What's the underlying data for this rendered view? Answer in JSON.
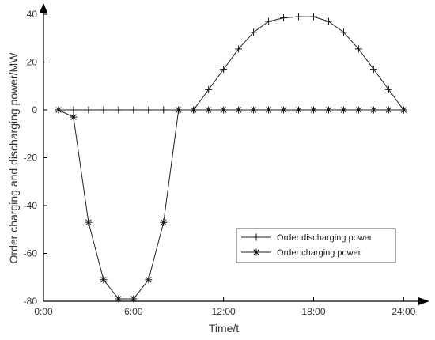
{
  "chart_data": {
    "type": "line",
    "xlabel": "Time/t",
    "ylabel": "Order charging and discharging power/MW",
    "xlim": [
      0,
      25.3
    ],
    "ylim": [
      -80,
      42
    ],
    "x_ticks": [
      0,
      6,
      12,
      18,
      24
    ],
    "x_tick_labels": [
      "0:00",
      "6:00",
      "12:00",
      "18:00",
      "24:00"
    ],
    "y_ticks": [
      -80,
      -60,
      -40,
      -20,
      0,
      20,
      40
    ],
    "y_tick_labels": [
      "-80",
      "-60",
      "-40",
      "-20",
      "0",
      "20",
      "40"
    ],
    "grid": false,
    "legend_position": "bottom-right",
    "x": [
      1,
      2,
      3,
      4,
      5,
      6,
      7,
      8,
      9,
      10,
      11,
      12,
      13,
      14,
      15,
      16,
      17,
      18,
      19,
      20,
      21,
      22,
      23,
      24
    ],
    "series": [
      {
        "name": "Order discharging power",
        "marker": "plus",
        "values": [
          0,
          0,
          0,
          0,
          0,
          0,
          0,
          0,
          0,
          0,
          8.5,
          17,
          25.5,
          32.5,
          37,
          38.5,
          39,
          39,
          37,
          32.5,
          25.5,
          17,
          8.5,
          0
        ]
      },
      {
        "name": "Order charging power",
        "marker": "asterisk",
        "values": [
          0,
          -3,
          -47,
          -71,
          -79,
          -79,
          -71,
          -47,
          0,
          0,
          0,
          0,
          0,
          0,
          0,
          0,
          0,
          0,
          0,
          0,
          0,
          0,
          0,
          0
        ]
      }
    ]
  }
}
